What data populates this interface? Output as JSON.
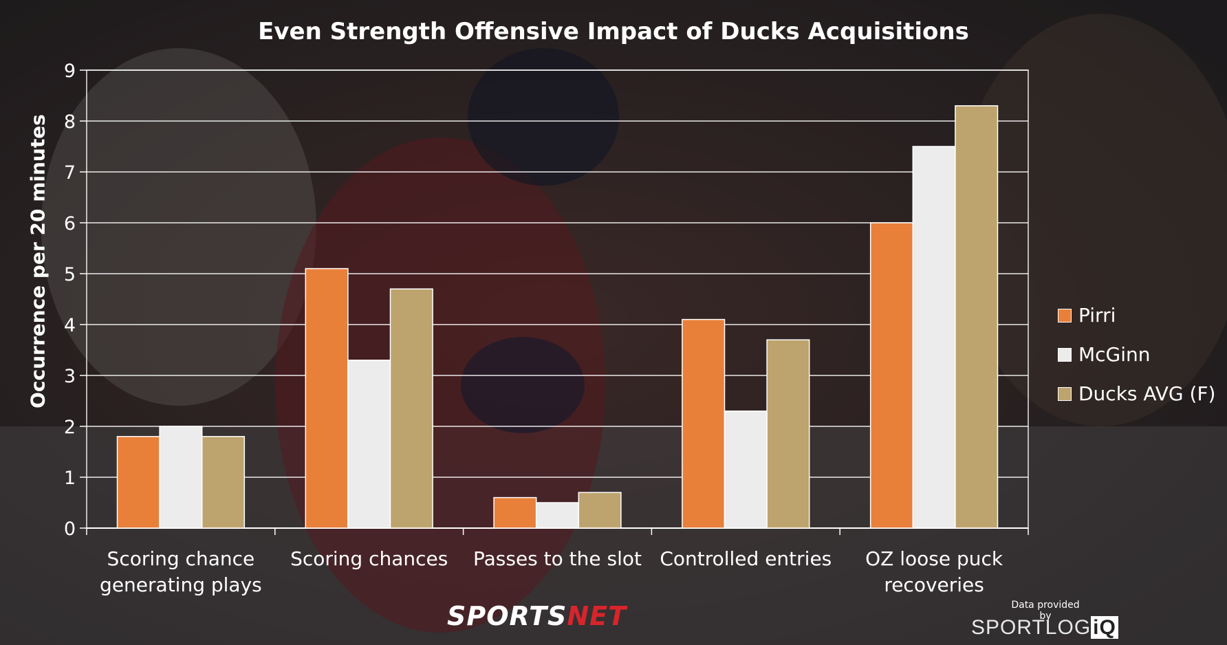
{
  "title": "Even Strength Offensive Impact of Ducks Acquisitions",
  "branding": {
    "network_prefix": "SPORTS",
    "network_suffix": "NET",
    "credit_line": "Data provided by",
    "credit_logo_main": "SPORTLOG",
    "credit_logo_suffix": "iQ"
  },
  "colors": {
    "pirri": "#e8803a",
    "mcginn": "#ececec",
    "ducks_avg": "#bda36d",
    "background": "#2a2628",
    "text": "#ffffff",
    "grid": "#ffffff"
  },
  "chart_data": {
    "type": "bar",
    "title": "Even Strength Offensive Impact of Ducks Acquisitions",
    "xlabel": "",
    "ylabel": "Occurrence per 20 minutes",
    "ylim": [
      0,
      9
    ],
    "yticks": [
      "0",
      "1",
      "2",
      "3",
      "4",
      "5",
      "6",
      "7",
      "8",
      "9"
    ],
    "grid": true,
    "legend_position": "right",
    "categories": [
      "Scoring chance generating plays",
      "Scoring chances",
      "Passes to the slot",
      "Controlled entries",
      "OZ loose puck recoveries"
    ],
    "category_lines": [
      [
        "Scoring chance",
        "generating plays"
      ],
      [
        "Scoring chances"
      ],
      [
        "Passes to the slot"
      ],
      [
        "Controlled entries"
      ],
      [
        "OZ loose puck",
        "recoveries"
      ]
    ],
    "series": [
      {
        "name": "Pirri",
        "color": "#e8803a",
        "values": [
          1.8,
          5.1,
          0.6,
          4.1,
          6.0
        ]
      },
      {
        "name": "McGinn",
        "color": "#ececec",
        "values": [
          2.0,
          3.3,
          0.5,
          2.3,
          7.5
        ]
      },
      {
        "name": "Ducks AVG (F)",
        "color": "#bda36d",
        "values": [
          1.8,
          4.7,
          0.7,
          3.7,
          8.3
        ]
      }
    ]
  }
}
